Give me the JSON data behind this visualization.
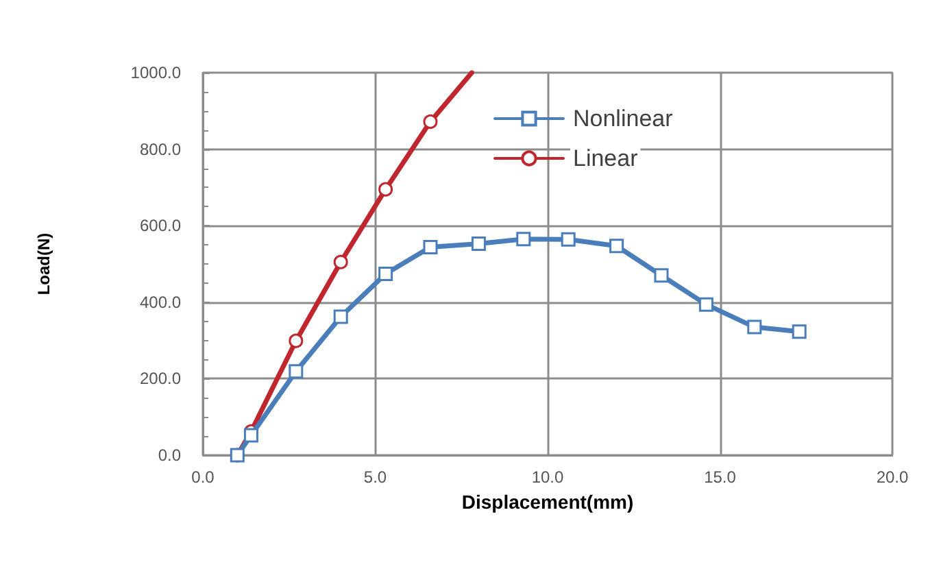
{
  "chart_data": {
    "type": "line",
    "xlabel": "Displacement(mm)",
    "ylabel": "Load(N)",
    "xlim": [
      0,
      20
    ],
    "xticks": [
      {
        "value": 0,
        "label": "0.0"
      },
      {
        "value": 5,
        "label": "5.0"
      },
      {
        "value": 10,
        "label": "10.0"
      },
      {
        "value": 15,
        "label": "15.0"
      },
      {
        "value": 20,
        "label": "20.0"
      }
    ],
    "ylim": [
      0,
      1000
    ],
    "yticks": [
      {
        "value": 0,
        "label": "0.0"
      },
      {
        "value": 200,
        "label": "200.0"
      },
      {
        "value": 400,
        "label": "400.0"
      },
      {
        "value": 600,
        "label": "600.0"
      },
      {
        "value": 800,
        "label": "800.0"
      },
      {
        "value": 1000,
        "label": "1000.0"
      }
    ],
    "grid": true,
    "legend": "top right",
    "series": [
      {
        "name": "Nonlinear",
        "color": "#4a7ebb",
        "marker": "square",
        "x": [
          1.0,
          1.4,
          2.7,
          4.0,
          5.3,
          6.6,
          8.0,
          9.3,
          10.6,
          12.0,
          13.3,
          14.6,
          16.0,
          17.3
        ],
        "values": [
          0,
          52,
          219,
          362,
          474,
          544,
          553,
          565,
          564,
          547,
          470,
          394,
          335,
          323
        ]
      },
      {
        "name": "Linear",
        "color": "#c0262d",
        "marker": "circle",
        "x": [
          1.0,
          1.4,
          2.7,
          4.0,
          5.3,
          6.6,
          7.8
        ],
        "values": [
          0,
          62,
          299,
          505,
          695,
          872,
          1000
        ]
      }
    ]
  }
}
